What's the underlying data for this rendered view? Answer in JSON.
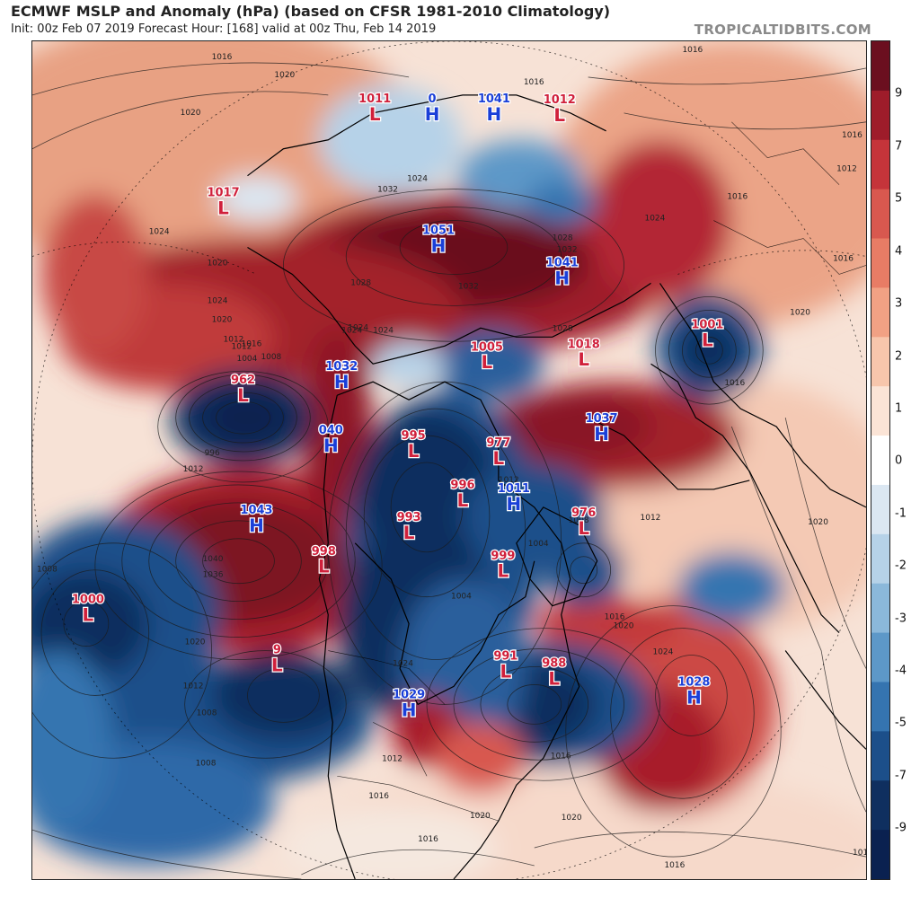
{
  "header": {
    "title": "ECMWF MSLP and Anomaly (hPa) (based on CFSR 1981-2010 Climatology)",
    "subtitle": "Init: 00z Feb 07 2019   Forecast Hour: [168]   valid at 00z Thu, Feb 14 2019",
    "source": "TROPICALTIDBITS.COM"
  },
  "colorbar": {
    "labels": [
      "9",
      "7",
      "5",
      "4",
      "3",
      "2",
      "1",
      "0",
      "-1",
      "-2",
      "-3",
      "-4",
      "-5",
      "-7",
      "-9"
    ],
    "colors": [
      "#6b0f1f",
      "#9e1c2a",
      "#c5343a",
      "#d8584f",
      "#e87c65",
      "#f1a184",
      "#f7c6ac",
      "#fbe4d6",
      "#ffffff",
      "#dbe7f2",
      "#b6d2e8",
      "#8bb8da",
      "#5d98c8",
      "#3574b0",
      "#1c4f8a",
      "#0f2f5f",
      "#0a2150"
    ]
  },
  "pressure_systems": [
    {
      "type": "L",
      "value": "1011",
      "color": "#d0203b"
    },
    {
      "type": "H",
      "value": "0",
      "color": "#1a3fd8"
    },
    {
      "type": "H",
      "value": "1041",
      "color": "#1a3fd8"
    },
    {
      "type": "L",
      "value": "1012",
      "color": "#d0203b"
    },
    {
      "type": "L",
      "value": "1017",
      "color": "#d0203b"
    },
    {
      "type": "H",
      "value": "1051",
      "color": "#1a3fd8"
    },
    {
      "type": "H",
      "value": "1041",
      "color": "#1a3fd8"
    },
    {
      "type": "L",
      "value": "1001",
      "color": "#d0203b"
    },
    {
      "type": "L",
      "value": "1005",
      "color": "#d0203b"
    },
    {
      "type": "L",
      "value": "1018",
      "color": "#d0203b"
    },
    {
      "type": "L",
      "value": "962",
      "color": "#d0203b"
    },
    {
      "type": "H",
      "value": "1032",
      "color": "#1a3fd8"
    },
    {
      "type": "H",
      "value": "040",
      "color": "#1a3fd8"
    },
    {
      "type": "L",
      "value": "995",
      "color": "#d0203b"
    },
    {
      "type": "L",
      "value": "977",
      "color": "#d0203b"
    },
    {
      "type": "H",
      "value": "1037",
      "color": "#1a3fd8"
    },
    {
      "type": "L",
      "value": "996",
      "color": "#d0203b"
    },
    {
      "type": "H",
      "value": "1011",
      "color": "#1a3fd8"
    },
    {
      "type": "L",
      "value": "976",
      "color": "#d0203b"
    },
    {
      "type": "H",
      "value": "1043",
      "color": "#1a3fd8"
    },
    {
      "type": "L",
      "value": "993",
      "color": "#d0203b"
    },
    {
      "type": "L",
      "value": "998",
      "color": "#d0203b"
    },
    {
      "type": "L",
      "value": "999",
      "color": "#d0203b"
    },
    {
      "type": "L",
      "value": "1000",
      "color": "#d0203b"
    },
    {
      "type": "L",
      "value": "9",
      "color": "#d0203b"
    },
    {
      "type": "L",
      "value": "991",
      "color": "#d0203b"
    },
    {
      "type": "L",
      "value": "988",
      "color": "#d0203b"
    },
    {
      "type": "H",
      "value": "1029",
      "color": "#1a3fd8"
    },
    {
      "type": "H",
      "value": "1028",
      "color": "#1a3fd8"
    }
  ],
  "isobar_labels": [
    "1016",
    "1016",
    "1020",
    "1024",
    "1020",
    "1024",
    "1024",
    "1024",
    "1020",
    "1012",
    "1004",
    "1008",
    "996",
    "1012",
    "1040",
    "1036",
    "1020",
    "1008",
    "1012",
    "1008",
    "1008",
    "1024",
    "1028",
    "1024",
    "1004",
    "1016",
    "1012",
    "1020",
    "1024",
    "1020",
    "1016",
    "1012",
    "1016",
    "1008",
    "1004",
    "1012",
    "1020",
    "1016",
    "1020",
    "1016",
    "1016",
    "1012",
    "1020",
    "1016",
    "1016",
    "1032",
    "1024",
    "1028",
    "1028",
    "1024",
    "1032",
    "1032",
    "1016",
    "1012",
    "1016",
    "1012",
    "1016",
    "1020"
  ]
}
